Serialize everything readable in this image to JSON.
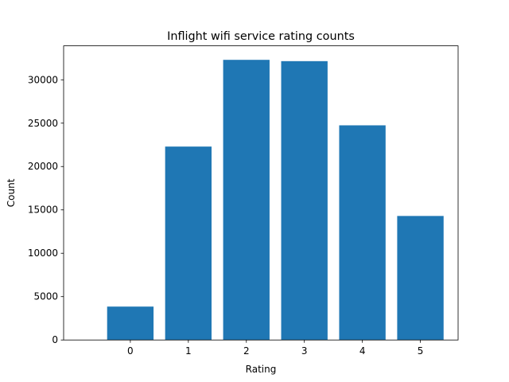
{
  "chart_data": {
    "type": "bar",
    "title": "Inflight wifi service rating counts",
    "xlabel": "Rating",
    "ylabel": "Count",
    "categories": [
      "0",
      "1",
      "2",
      "3",
      "4",
      "5"
    ],
    "values": [
      3850,
      22300,
      32300,
      32150,
      24750,
      14300
    ],
    "ylim": [
      0,
      33915
    ],
    "y_ticks": [
      "0",
      "5000",
      "10000",
      "15000",
      "20000",
      "25000",
      "30000"
    ],
    "y_tick_values": [
      0,
      5000,
      10000,
      15000,
      20000,
      25000,
      30000
    ],
    "bar_color": "#1f77b4",
    "grid": false,
    "legend": "none"
  }
}
